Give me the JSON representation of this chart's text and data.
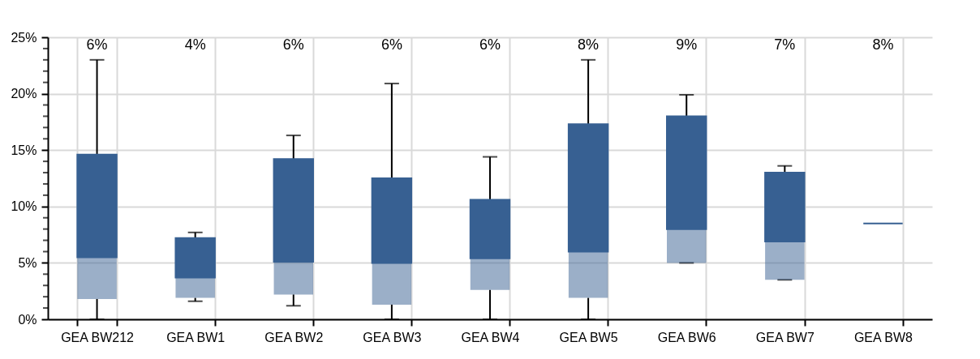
{
  "chart_data": {
    "type": "box",
    "categories": [
      "GEA BW212",
      "GEA BW1",
      "GEA BW2",
      "GEA BW3",
      "GEA BW4",
      "GEA BW5",
      "GEA BW6",
      "GEA BW7",
      "GEA BW8"
    ],
    "series": [
      {
        "color": "#376092",
        "boxes": [
          {
            "low": 0,
            "q1": 1.8,
            "median": 5.5,
            "q3": 14.6,
            "high": 23
          },
          {
            "low": 1.6,
            "q1": 1.9,
            "median": 3.7,
            "q3": 7.2,
            "high": 7.7
          },
          {
            "low": 1.2,
            "q1": 2.2,
            "median": 5.1,
            "q3": 14.2,
            "high": 16.3
          },
          {
            "low": 0,
            "q1": 1.3,
            "median": 5.0,
            "q3": 12.5,
            "high": 20.9
          },
          {
            "low": 0,
            "q1": 2.6,
            "median": 5.4,
            "q3": 10.6,
            "high": 14.4
          },
          {
            "low": 0,
            "q1": 1.9,
            "median": 6.0,
            "q3": 17.3,
            "high": 23
          },
          {
            "low": 5.0,
            "q1": 5.0,
            "median": 8.0,
            "q3": 18.0,
            "high": 19.9
          },
          {
            "low": 3.5,
            "q1": 3.5,
            "median": 6.9,
            "q3": 13.0,
            "high": 13.6
          },
          {
            "low": 8.5,
            "q1": 8.5,
            "median": 8.5,
            "q3": 8.5,
            "high": 8.5
          }
        ]
      }
    ],
    "ylim": [
      0,
      25
    ],
    "yticks": [
      {
        "value": 0,
        "label": "0%"
      },
      {
        "value": 1,
        "label": null
      },
      {
        "value": 2,
        "label": null
      },
      {
        "value": 3,
        "label": null
      },
      {
        "value": 4,
        "label": null
      },
      {
        "value": 5,
        "label": "5%"
      },
      {
        "value": 6,
        "label": null
      },
      {
        "value": 7,
        "label": null
      },
      {
        "value": 8,
        "label": null
      },
      {
        "value": 9,
        "label": null
      },
      {
        "value": 10,
        "label": "10%"
      },
      {
        "value": 11,
        "label": null
      },
      {
        "value": 12,
        "label": null
      },
      {
        "value": 13,
        "label": null
      },
      {
        "value": 14,
        "label": null
      },
      {
        "value": 15,
        "label": "15%"
      },
      {
        "value": 16,
        "label": null
      },
      {
        "value": 17,
        "label": null
      },
      {
        "value": 18,
        "label": null
      },
      {
        "value": 19,
        "label": null
      },
      {
        "value": 20,
        "label": "20%"
      },
      {
        "value": 21,
        "label": null
      },
      {
        "value": 22,
        "label": null
      },
      {
        "value": 23,
        "label": null
      },
      {
        "value": 24,
        "label": null
      },
      {
        "value": 25,
        "label": "25%"
      }
    ],
    "grid": true,
    "annotations": [
      "6%",
      "4%",
      "6%",
      "6%",
      "6%",
      "8%",
      "9%",
      "7%",
      "8%"
    ]
  }
}
